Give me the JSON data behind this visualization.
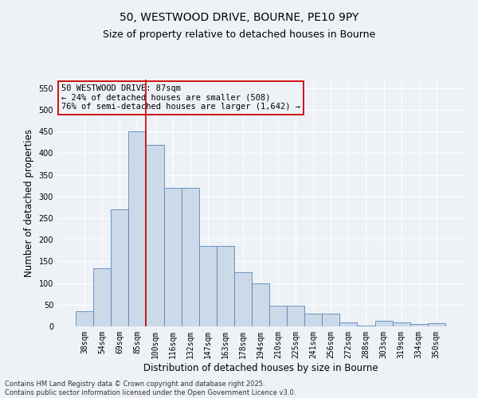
{
  "title_line1": "50, WESTWOOD DRIVE, BOURNE, PE10 9PY",
  "title_line2": "Size of property relative to detached houses in Bourne",
  "xlabel": "Distribution of detached houses by size in Bourne",
  "ylabel": "Number of detached properties",
  "categories": [
    "38sqm",
    "54sqm",
    "69sqm",
    "85sqm",
    "100sqm",
    "116sqm",
    "132sqm",
    "147sqm",
    "163sqm",
    "178sqm",
    "194sqm",
    "210sqm",
    "225sqm",
    "241sqm",
    "256sqm",
    "272sqm",
    "288sqm",
    "303sqm",
    "319sqm",
    "334sqm",
    "350sqm"
  ],
  "values": [
    35,
    135,
    270,
    450,
    420,
    320,
    320,
    185,
    185,
    125,
    100,
    47,
    47,
    30,
    30,
    10,
    2,
    12,
    10,
    5,
    8
  ],
  "bar_color": "#ccd9e8",
  "bar_edge_color": "#5588bb",
  "vline_color": "#cc0000",
  "vline_x_index": 3,
  "annotation_text": "50 WESTWOOD DRIVE: 87sqm\n← 24% of detached houses are smaller (508)\n76% of semi-detached houses are larger (1,642) →",
  "annotation_box_color": "#cc0000",
  "ylim": [
    0,
    570
  ],
  "yticks": [
    0,
    50,
    100,
    150,
    200,
    250,
    300,
    350,
    400,
    450,
    500,
    550
  ],
  "bg_color": "#eef2f7",
  "grid_color": "#ffffff",
  "footer": "Contains HM Land Registry data © Crown copyright and database right 2025.\nContains public sector information licensed under the Open Government Licence v3.0.",
  "title_fontsize": 10,
  "subtitle_fontsize": 9,
  "axis_label_fontsize": 8.5,
  "tick_fontsize": 7,
  "annotation_fontsize": 7.5,
  "footer_fontsize": 6
}
